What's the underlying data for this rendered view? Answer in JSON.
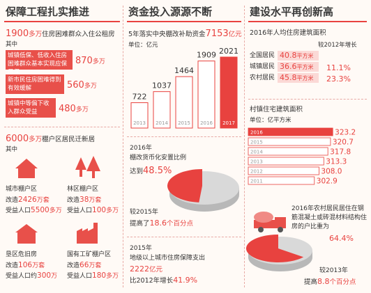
{
  "left": {
    "title": "保障工程扎实推进",
    "headline": {
      "number": "1900",
      "unit": "多万",
      "text": "住房困难群众入住公租房"
    },
    "among": "其中",
    "groups": [
      {
        "label": "城镇低保、低收入住房困难群众基本实现应保尽保",
        "number": "870",
        "unit": "多万"
      },
      {
        "label": "新市民住房困难得到有效缓解",
        "number": "560",
        "unit": "多万"
      },
      {
        "label": "城镇中等偏下收入群众受益",
        "number": "480",
        "unit": "多万"
      }
    ],
    "headline2": {
      "number": "6000",
      "unit": "多万",
      "text": "棚户区居民迁新居"
    },
    "among2": "其中",
    "areas": [
      {
        "name": "城市棚户区",
        "renovated_prefix": "改造",
        "renovated": "2426",
        "renovated_unit": "万套",
        "benefit_prefix": "受益人口",
        "benefit": "5500",
        "benefit_unit": "多万"
      },
      {
        "name": "林区棚户区",
        "renovated_prefix": "改造",
        "renovated": "38",
        "renovated_unit": "万套",
        "benefit_prefix": "受益人口",
        "benefit": "100",
        "benefit_unit": "多万"
      },
      {
        "name": "垦区危旧房",
        "renovated_prefix": "改造",
        "renovated": "106",
        "renovated_unit": "万套",
        "benefit_prefix": "受益人口约",
        "benefit": "300",
        "benefit_unit": "万"
      },
      {
        "name": "国有工矿棚户区",
        "renovated_prefix": "改造",
        "renovated": "66",
        "renovated_unit": "万套",
        "benefit_prefix": "受益人口",
        "benefit": "180",
        "benefit_unit": "多万"
      }
    ]
  },
  "middle": {
    "title": "资金投入源源不断",
    "subsidy": {
      "text": "5年落实中央棚改补助资金",
      "number": "7153",
      "unit": "亿元"
    },
    "chart": {
      "type": "bar",
      "unit": "单位：亿元",
      "categories": [
        "2013",
        "2014",
        "2015",
        "2016",
        "2017"
      ],
      "values": [
        722,
        1037,
        1464,
        1909,
        2021
      ],
      "color": "#e8423f",
      "bar_fills": [
        "#ffffff",
        "#ffffff",
        "#ffffff",
        "#ffffff",
        "#e8423f"
      ],
      "ylim": [
        0,
        2100
      ]
    },
    "pie": {
      "type": "pie",
      "year": "2016年",
      "label": "棚改货币化安置比例",
      "prefix": "达到",
      "value": 48.5,
      "value_label": "48.5%",
      "color": "#e8423f",
      "compare": "较2015年",
      "change_prefix": "提高了",
      "change": "18.6",
      "change_unit": "个百分点"
    },
    "spending": {
      "year": "2015年",
      "label": "地级以上城市住房保障支出",
      "number": "2222",
      "unit": "亿元",
      "growth_prefix": "比2012年增长",
      "growth": "41.9%"
    }
  },
  "right": {
    "title": "建设水平再创新高",
    "area_title": "2016年人均住房建筑面积",
    "area_header": "较2012年增长",
    "area_rows": [
      {
        "name": "全国居民",
        "area": "40.8",
        "unit": "平方米"
      },
      {
        "name": "城镇居民",
        "area": "36.6",
        "unit": "平方米",
        "growth": "11.1%"
      },
      {
        "name": "农村居民",
        "area": "45.8",
        "unit": "平方米",
        "growth": "23.3%"
      }
    ],
    "chart": {
      "type": "hbar",
      "title": "村镇住宅建筑面积",
      "unit": "单位：亿平方米",
      "categories": [
        "2016",
        "2015",
        "2014",
        "2013",
        "2012",
        "2011"
      ],
      "values": [
        323.2,
        320.7,
        317.8,
        313.3,
        308.0,
        302.9
      ],
      "value_labels": [
        "323.2",
        "320.7",
        "317.8",
        "313.3",
        "308.0",
        "302.9"
      ],
      "color": "#e8423f",
      "bar_fills": [
        "#e8423f",
        "#ffffff",
        "#ffffff",
        "#ffffff",
        "#ffffff",
        "#ffffff"
      ],
      "xlim": [
        230,
        330
      ]
    },
    "pie": {
      "type": "pie",
      "label": "2016年农村居民居住在钢筋混凝土或砖混材料结构住房的户比重为",
      "value": 64.4,
      "value_label": "64.4%",
      "color": "#e8423f",
      "compare": "较2013年",
      "change_prefix": "提高",
      "change": "8.8",
      "change_unit": "个百分点"
    }
  }
}
